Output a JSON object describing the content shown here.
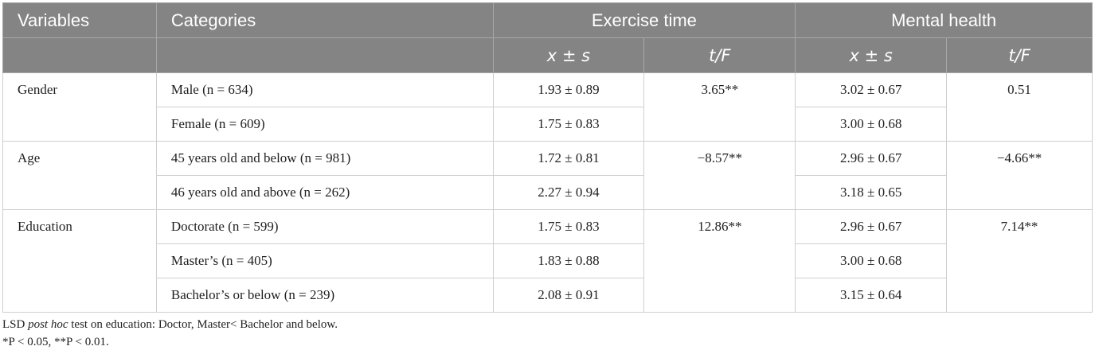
{
  "header": {
    "col_variables": "Variables",
    "col_categories": "Categories",
    "group_exercise": "Exercise time",
    "group_mental": "Mental health",
    "sub_mean": "x ± s",
    "sub_stat": "t/F"
  },
  "rows": [
    {
      "variable": "Gender",
      "stat_exercise": "3.65**",
      "stat_mental": "0.51",
      "items": [
        {
          "category": "Male (n = 634)",
          "exercise": "1.93 ± 0.89",
          "mental": "3.02 ± 0.67"
        },
        {
          "category": "Female (n = 609)",
          "exercise": "1.75 ± 0.83",
          "mental": "3.00 ± 0.68"
        }
      ]
    },
    {
      "variable": "Age",
      "stat_exercise": "−8.57**",
      "stat_mental": "−4.66**",
      "items": [
        {
          "category": "45 years old and below (n = 981)",
          "exercise": "1.72 ± 0.81",
          "mental": "2.96 ± 0.67"
        },
        {
          "category": "46 years old and above (n = 262)",
          "exercise": "2.27 ± 0.94",
          "mental": "3.18 ± 0.65"
        }
      ]
    },
    {
      "variable": "Education",
      "stat_exercise": "12.86**",
      "stat_mental": "7.14**",
      "items": [
        {
          "category": "Doctorate (n = 599)",
          "exercise": "1.75 ± 0.83",
          "mental": "2.96 ± 0.67"
        },
        {
          "category": "Master’s (n = 405)",
          "exercise": "1.83 ± 0.88",
          "mental": "3.00 ± 0.68"
        },
        {
          "category": "Bachelor’s or below (n = 239)",
          "exercise": "2.08 ± 0.91",
          "mental": "3.15 ± 0.64"
        }
      ]
    }
  ],
  "notes": {
    "line1_a": "LSD ",
    "line1_em": "post hoc",
    "line1_b": " test on education: Doctor, Master< Bachelor and below.",
    "line2": "*P < 0.05, **P < 0.01."
  }
}
